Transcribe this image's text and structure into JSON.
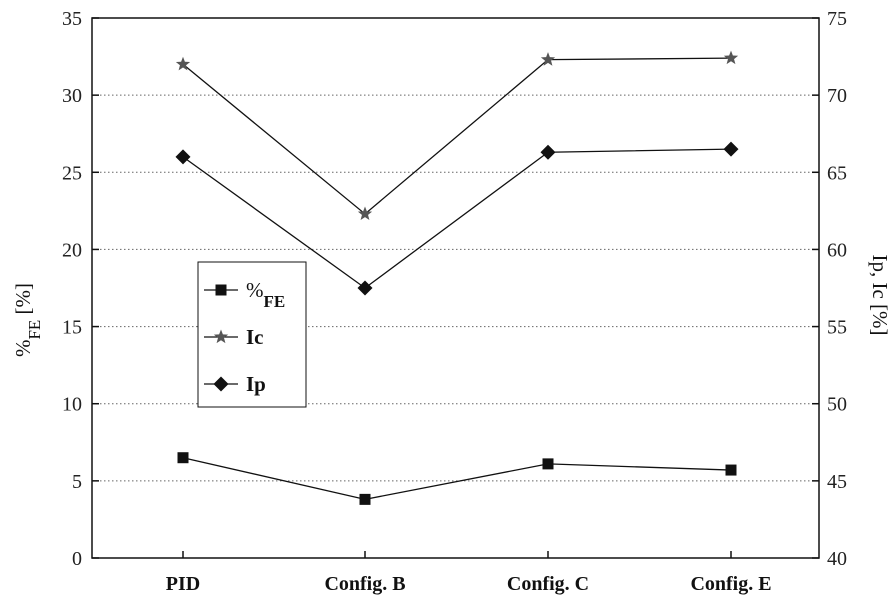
{
  "chart_data": {
    "type": "line",
    "categories": [
      "PID",
      "Config. B",
      "Config. C",
      "Config. E"
    ],
    "y_left": {
      "label_main": "%",
      "label_sub": "FE",
      "label_tail": " [%]",
      "ylim": [
        0,
        35
      ],
      "ticks": [
        0,
        5,
        10,
        15,
        20,
        25,
        30,
        35
      ]
    },
    "y_right": {
      "label": "Ip, Ic [%]",
      "ylim": [
        40,
        75
      ],
      "ticks": [
        40,
        45,
        50,
        55,
        60,
        65,
        70,
        75
      ]
    },
    "grid": "horizontal-dotted",
    "legend_position": "center-left",
    "series": [
      {
        "name_main": "%",
        "name_sub": "FE",
        "marker": "square",
        "axis": "left",
        "values": [
          6.5,
          3.8,
          6.1,
          5.7
        ]
      },
      {
        "name": "Ic",
        "marker": "star",
        "axis": "right",
        "values": [
          72.0,
          62.3,
          72.3,
          72.4
        ]
      },
      {
        "name": "Ip",
        "marker": "diamond",
        "axis": "right",
        "values": [
          66.0,
          57.5,
          66.3,
          66.5
        ]
      }
    ]
  }
}
